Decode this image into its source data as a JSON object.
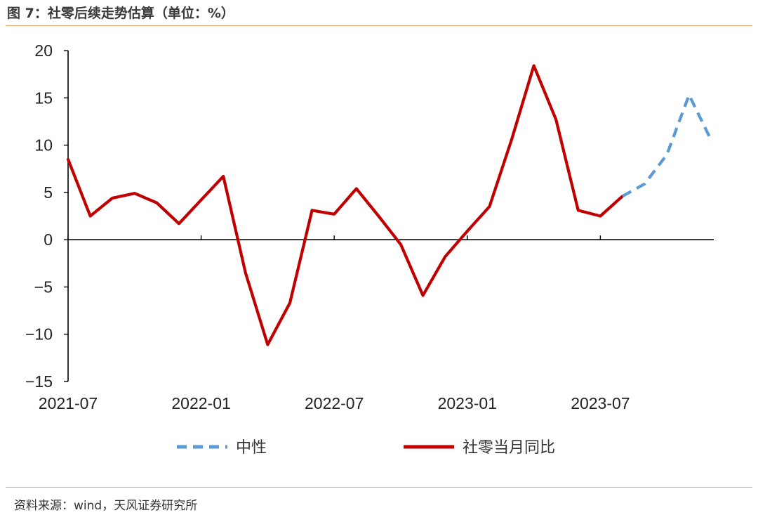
{
  "header": {
    "title": "图 7：社零后续走势估算（单位：%）"
  },
  "footer": {
    "source": "资料来源：wind，天风证券研究所"
  },
  "colors": {
    "actual": "#c00000",
    "neutral": "#5b9bd5",
    "rule": "#f0a868"
  },
  "chart_data": {
    "type": "line",
    "title": "社零后续走势估算（单位：%）",
    "xlabel": "",
    "ylabel": "",
    "ylim": [
      -15,
      20
    ],
    "yticks": [
      -15,
      -10,
      -5,
      0,
      5,
      10,
      15,
      20
    ],
    "ytick_labels": [
      "−15",
      "−10",
      "−5",
      "0",
      "5",
      "10",
      "15",
      "20"
    ],
    "xtick_labels": [
      "2021-07",
      "2022-01",
      "2022-07",
      "2023-01",
      "2023-07"
    ],
    "xtick_index": [
      0,
      6,
      12,
      18,
      24
    ],
    "grid": false,
    "legend_position": "bottom",
    "series": [
      {
        "name": "中性",
        "style": "dashed",
        "color": "#5b9bd5",
        "x": [
          "2023-08",
          "2023-09",
          "2023-10",
          "2023-11",
          "2023-12"
        ],
        "values": [
          4.6,
          5.9,
          9.0,
          15.3,
          10.5
        ]
      },
      {
        "name": "社零当月同比",
        "style": "solid",
        "color": "#c00000",
        "x": [
          "2021-07",
          "2021-08",
          "2021-09",
          "2021-10",
          "2021-11",
          "2021-12",
          "2022-01",
          "2022-02",
          "2022-03",
          "2022-04",
          "2022-05",
          "2022-06",
          "2022-07",
          "2022-08",
          "2022-09",
          "2022-10",
          "2022-11",
          "2022-12",
          "2023-01",
          "2023-02",
          "2023-03",
          "2023-04",
          "2023-05",
          "2023-06",
          "2023-07",
          "2023-08"
        ],
        "values": [
          8.5,
          2.5,
          4.4,
          4.9,
          3.9,
          1.7,
          4.2,
          6.7,
          -3.5,
          -11.1,
          -6.7,
          3.1,
          2.7,
          5.4,
          2.5,
          -0.5,
          -5.9,
          -1.8,
          0.9,
          3.5,
          10.6,
          18.4,
          12.7,
          3.1,
          2.5,
          4.6
        ]
      }
    ]
  }
}
